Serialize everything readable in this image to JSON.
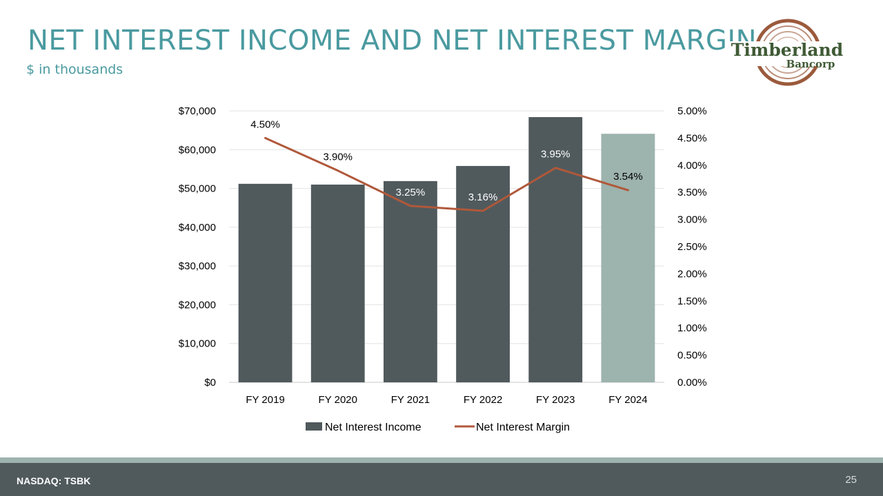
{
  "slide": {
    "title": "NET INTEREST INCOME AND NET INTEREST MARGIN",
    "subtitle": "$ in thousands",
    "footer_left": "NASDAQ: TSBK",
    "page_number": "25"
  },
  "logo": {
    "name": "Timberland",
    "sub": "Bancorp",
    "colors": {
      "ring": "#9b5a3c",
      "text": "#3f5a35"
    }
  },
  "chart_data": {
    "type": "bar+line",
    "categories": [
      "FY 2019",
      "FY 2020",
      "FY 2021",
      "FY 2022",
      "FY 2023",
      "FY 2024"
    ],
    "series": [
      {
        "name": "Net Interest Income",
        "type": "bar",
        "axis": "left",
        "values": [
          51200,
          51000,
          51900,
          55800,
          68400,
          64100
        ],
        "color": "#505a5d",
        "highlight_color": "#9db3ad",
        "highlight_index": 5
      },
      {
        "name": "Net Interest Margin",
        "type": "line",
        "axis": "right",
        "values": [
          4.5,
          3.9,
          3.25,
          3.16,
          3.95,
          3.54
        ],
        "labels": [
          "4.50%",
          "3.90%",
          "3.25%",
          "3.16%",
          "3.95%",
          "3.54%"
        ],
        "color": "#b0583a"
      }
    ],
    "left_axis": {
      "ylim": [
        0,
        70000
      ],
      "ticks": [
        "$0",
        "$10,000",
        "$20,000",
        "$30,000",
        "$40,000",
        "$50,000",
        "$60,000",
        "$70,000"
      ]
    },
    "right_axis": {
      "ylim": [
        0,
        5
      ],
      "ticks": [
        "0.00%",
        "0.50%",
        "1.00%",
        "1.50%",
        "2.00%",
        "2.50%",
        "3.00%",
        "3.50%",
        "4.00%",
        "4.50%",
        "5.00%"
      ]
    },
    "grid": true,
    "legend": "bottom"
  }
}
